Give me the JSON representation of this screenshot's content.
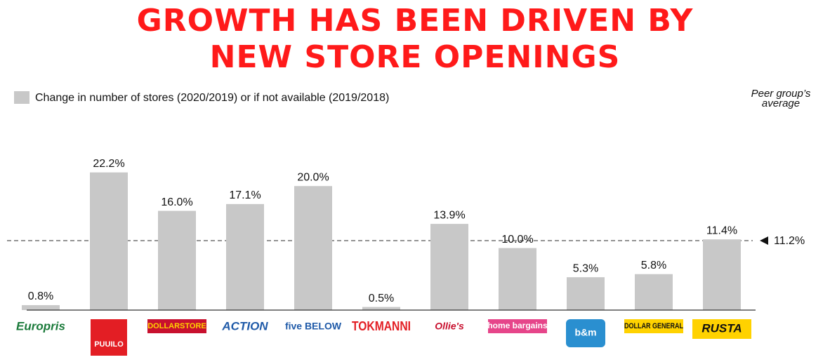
{
  "chart_data": {
    "type": "bar",
    "title": [
      "GROWTH HAS BEEN DRIVEN BY",
      "NEW STORE OPENINGS"
    ],
    "categories": [
      "Europris",
      "PUUILO",
      "DOLLARSTORE",
      "ACTION",
      "five BELOW",
      "TOKMANNI",
      "Ollie's",
      "home bargains",
      "b&m",
      "DOLLAR GENERAL",
      "RUSTA"
    ],
    "series": [
      {
        "name": "Change in number of stores (2020/2019) or if not available (2019/2018)",
        "color": "#c8c8c8",
        "values": [
          0.8,
          22.2,
          16.0,
          17.1,
          20.0,
          0.5,
          13.9,
          10.0,
          5.3,
          5.8,
          11.4
        ],
        "value_labels": [
          "0.8%",
          "22.2%",
          "16.0%",
          "17.1%",
          "20.0%",
          "0.5%",
          "13.9%",
          "10.0%",
          "5.3%",
          "5.8%",
          "11.4%"
        ]
      }
    ],
    "reference_line": {
      "name": "Peer group’s average",
      "value": 11.2,
      "label": "11.2%"
    },
    "ylim": [
      0,
      25
    ]
  }
}
